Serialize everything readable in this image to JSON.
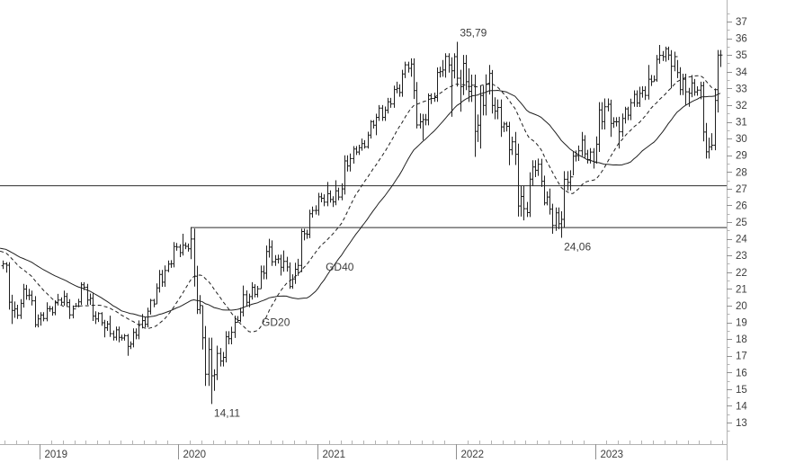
{
  "colors": {
    "background": "#ffffff",
    "bar": "#1f1f1f",
    "ma_line": "#1f1f1f",
    "axis_line": "#b3b3b3",
    "tick_minor": "#b3b3b3",
    "tick_major": "#8f8f8f",
    "axis_label": "#3d3d3d",
    "annotation": "#3d3d3d",
    "h_line": "#2b2b2b"
  },
  "chart_data": {
    "type": "ohlc",
    "timeframe": "weekly",
    "title": "",
    "x_axis": {
      "year_labels": [
        "2019",
        "2020",
        "2021",
        "2022",
        "2023"
      ],
      "start_t": 2018.715,
      "end_t": 2023.92
    },
    "y_axis": {
      "tick_min": 13,
      "tick_max": 37,
      "tick_step": 1,
      "minor_step": 0.5,
      "value_at_top": 38.3,
      "value_at_bottom": 11.7
    },
    "horizontal_lines": [
      {
        "name": "resistance-line",
        "price": 27.2,
        "from_t": 2018.715,
        "to_t": 2023.95
      },
      {
        "name": "support-line",
        "price": 24.7,
        "from_t": 2020.088,
        "to_t": 2023.95
      }
    ],
    "moving_averages": [
      {
        "label": "GD40",
        "window": 40,
        "style": "solid",
        "label_t": 2021.06,
        "label_price": 22.3
      },
      {
        "label": "GD20",
        "window": 20,
        "style": "dashed",
        "label_t": 2020.6,
        "label_price": 19.0
      }
    ],
    "annotations": [
      {
        "text": "35,79",
        "value": 35.79,
        "anchor": "global-high"
      },
      {
        "text": "24,06",
        "value": 24.06,
        "anchor": "low-after-2022.3"
      },
      {
        "text": "14,11",
        "value": 14.11,
        "anchor": "global-low"
      }
    ],
    "prehistory_closes": {
      "from": 23.8,
      "to": 23.2,
      "weeks": 40
    },
    "monthly_ohlc": [
      [
        2018,
        9,
        23.6,
        21.9,
        22.5
      ],
      [
        2018,
        10,
        22.6,
        18.9,
        19.8
      ],
      [
        2018,
        11,
        21.3,
        19.2,
        20.6
      ],
      [
        2018,
        12,
        21.0,
        18.7,
        19.2
      ],
      [
        2019,
        1,
        20.2,
        18.8,
        19.8
      ],
      [
        2019,
        2,
        20.7,
        19.4,
        20.2
      ],
      [
        2019,
        3,
        20.9,
        19.2,
        19.8
      ],
      [
        2019,
        4,
        21.4,
        19.9,
        21.1
      ],
      [
        2019,
        5,
        21.3,
        18.9,
        19.2
      ],
      [
        2019,
        6,
        19.6,
        18.1,
        18.9
      ],
      [
        2019,
        7,
        19.4,
        17.8,
        18.1
      ],
      [
        2019,
        8,
        18.3,
        17.0,
        17.7
      ],
      [
        2019,
        9,
        19.5,
        17.5,
        19.1
      ],
      [
        2019,
        10,
        20.4,
        18.7,
        20.1
      ],
      [
        2019,
        11,
        22.4,
        20.1,
        22.1
      ],
      [
        2019,
        12,
        23.8,
        22.0,
        23.5
      ],
      [
        2020,
        1,
        24.3,
        22.9,
        23.4
      ],
      [
        2020,
        2,
        24.7,
        19.5,
        20.0
      ],
      [
        2020,
        3,
        20.0,
        14.11,
        15.8
      ],
      [
        2020,
        4,
        17.6,
        14.9,
        16.9
      ],
      [
        2020,
        5,
        19.4,
        16.6,
        19.0
      ],
      [
        2020,
        6,
        21.2,
        19.0,
        20.2
      ],
      [
        2020,
        7,
        21.4,
        19.9,
        21.0
      ],
      [
        2020,
        8,
        24.0,
        21.0,
        23.5
      ],
      [
        2020,
        9,
        23.9,
        21.8,
        22.3
      ],
      [
        2020,
        10,
        23.3,
        21.0,
        21.6
      ],
      [
        2020,
        11,
        24.6,
        21.3,
        24.3
      ],
      [
        2020,
        12,
        26.0,
        24.0,
        25.7
      ],
      [
        2021,
        1,
        27.4,
        25.4,
        26.7
      ],
      [
        2021,
        2,
        27.5,
        25.9,
        26.5
      ],
      [
        2021,
        3,
        29.1,
        26.3,
        28.8
      ],
      [
        2021,
        4,
        30.0,
        28.5,
        29.7
      ],
      [
        2021,
        5,
        31.1,
        29.4,
        30.8
      ],
      [
        2021,
        6,
        32.0,
        30.2,
        31.7
      ],
      [
        2021,
        7,
        33.4,
        31.5,
        33.0
      ],
      [
        2021,
        8,
        34.6,
        32.5,
        34.2
      ],
      [
        2021,
        9,
        34.8,
        30.6,
        31.0
      ],
      [
        2021,
        10,
        32.7,
        29.9,
        32.4
      ],
      [
        2021,
        11,
        34.7,
        32.2,
        34.1
      ],
      [
        2021,
        12,
        35.1,
        31.3,
        34.9
      ],
      [
        2022,
        1,
        35.79,
        31.6,
        33.4
      ],
      [
        2022,
        2,
        34.2,
        28.9,
        30.8
      ],
      [
        2022,
        3,
        34.4,
        29.4,
        33.9
      ],
      [
        2022,
        4,
        34.1,
        30.1,
        30.7
      ],
      [
        2022,
        5,
        31.0,
        28.4,
        29.8
      ],
      [
        2022,
        6,
        30.4,
        25.1,
        25.8
      ],
      [
        2022,
        7,
        28.7,
        25.3,
        28.1
      ],
      [
        2022,
        8,
        28.8,
        26.0,
        26.5
      ],
      [
        2022,
        9,
        27.0,
        24.3,
        24.9
      ],
      [
        2022,
        10,
        28.1,
        24.06,
        27.7
      ],
      [
        2022,
        11,
        30.4,
        27.8,
        29.9
      ],
      [
        2022,
        12,
        30.2,
        28.2,
        28.6
      ],
      [
        2023,
        1,
        32.4,
        28.5,
        31.9
      ],
      [
        2023,
        2,
        32.4,
        30.1,
        31.0
      ],
      [
        2023,
        3,
        31.9,
        29.4,
        31.4
      ],
      [
        2023,
        4,
        33.1,
        31.1,
        32.7
      ],
      [
        2023,
        5,
        34.4,
        32.3,
        33.4
      ],
      [
        2023,
        6,
        35.6,
        33.4,
        34.9
      ],
      [
        2023,
        7,
        35.5,
        33.0,
        34.9
      ],
      [
        2023,
        8,
        34.7,
        32.0,
        32.8
      ],
      [
        2023,
        9,
        33.8,
        31.9,
        32.9
      ],
      [
        2023,
        10,
        33.4,
        28.8,
        29.5
      ],
      [
        2023,
        11,
        35.3,
        29.3,
        35.0
      ]
    ]
  }
}
